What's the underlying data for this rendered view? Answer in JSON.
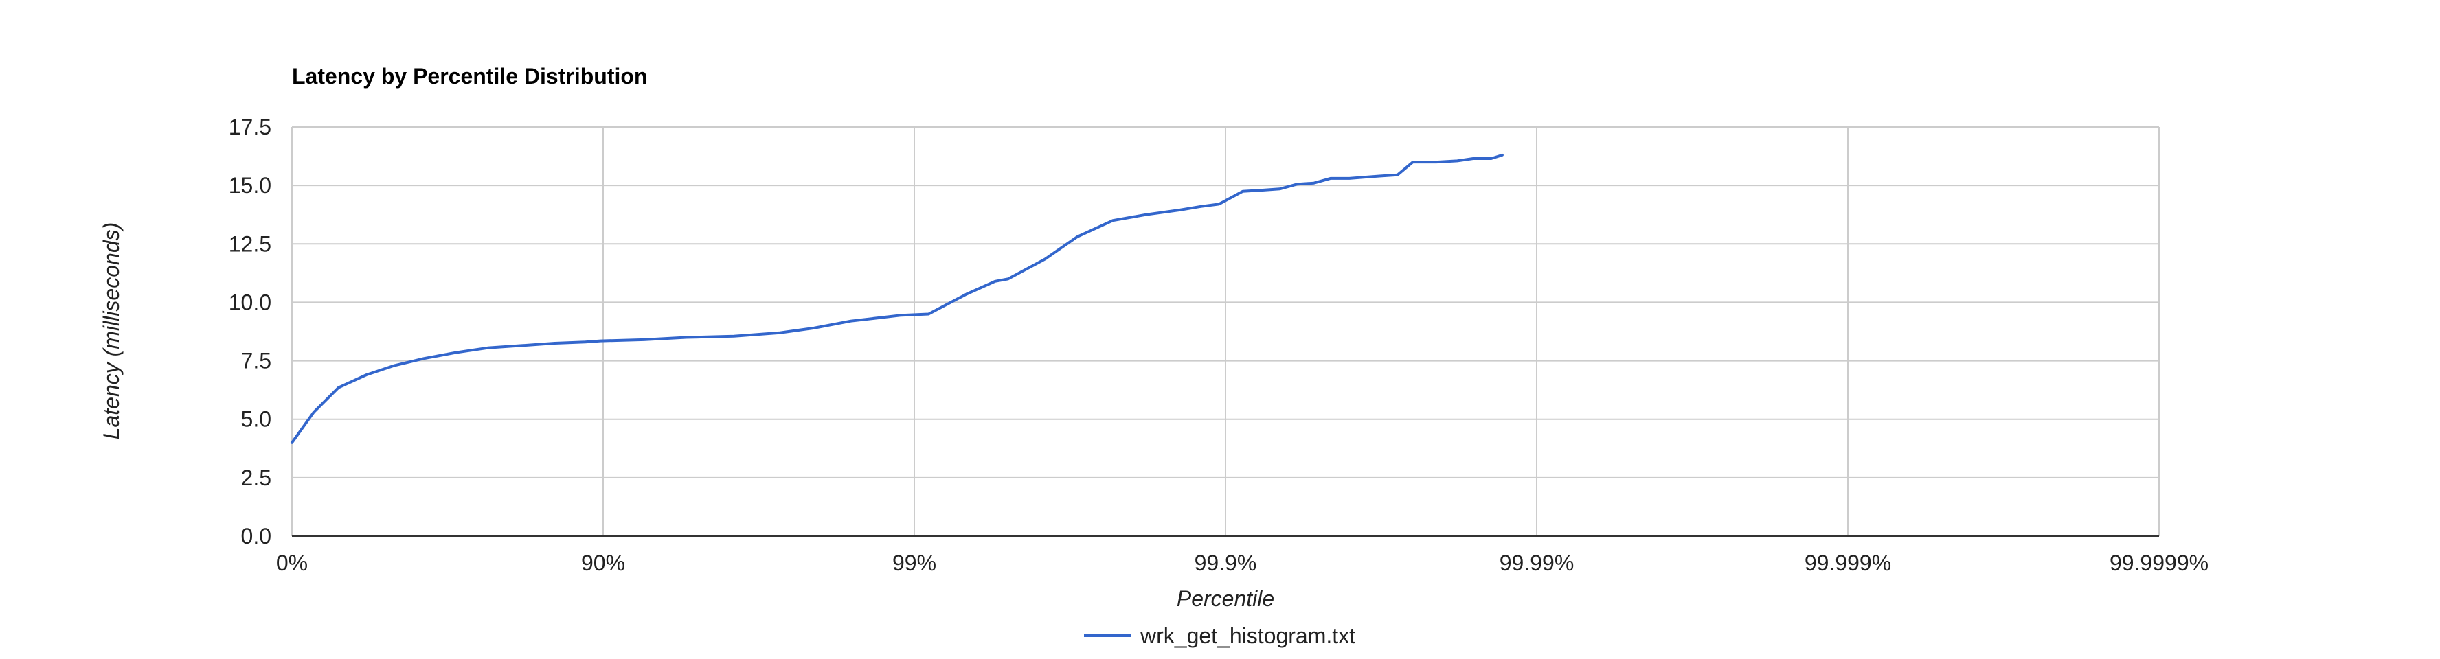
{
  "chart_data": {
    "type": "line",
    "title": "Latency by Percentile Distribution",
    "xlabel": "Percentile",
    "ylabel": "Latency (milliseconds)",
    "x_scale": "log-inverse-percentile",
    "x_ticks": [
      "0%",
      "90%",
      "99%",
      "99.9%",
      "99.99%",
      "99.999%",
      "99.9999%"
    ],
    "x_tick_values": [
      0,
      90,
      99,
      99.9,
      99.99,
      99.999,
      99.9999
    ],
    "xlim": [
      0,
      99.9999
    ],
    "y_ticks": [
      "0.0",
      "2.5",
      "5.0",
      "7.5",
      "10.0",
      "12.5",
      "15.0",
      "17.5"
    ],
    "ylim": [
      0,
      17.5
    ],
    "grid": true,
    "legend": "bottom",
    "colors": {
      "series": "#3366cc",
      "grid": "#cccccc",
      "axis": "#333333"
    },
    "series": [
      {
        "name": "wrk_get_histogram.txt",
        "x": [
          0,
          14.9,
          29.1,
          42.4,
          53.2,
          62.4,
          70.2,
          76.5,
          81.7,
          85.7,
          88.6,
          89.8,
          92.6,
          94.6,
          96.2,
          97.3,
          97.9,
          98.4,
          98.9,
          99.1,
          99.32,
          99.45,
          99.5,
          99.62,
          99.7,
          99.77,
          99.82,
          99.86,
          99.88,
          99.895,
          99.912,
          99.924,
          99.933,
          99.941,
          99.948,
          99.954,
          99.96,
          99.964,
          99.968,
          99.972,
          99.975,
          99.979,
          99.982,
          99.984,
          99.986,
          99.9871
        ],
        "y": [
          4.0,
          5.3,
          6.35,
          6.9,
          7.3,
          7.6,
          7.85,
          8.05,
          8.15,
          8.25,
          8.3,
          8.35,
          8.4,
          8.5,
          8.55,
          8.7,
          8.9,
          9.2,
          9.45,
          9.5,
          10.35,
          10.9,
          11.0,
          11.85,
          12.8,
          13.5,
          13.75,
          13.95,
          14.1,
          14.2,
          14.75,
          14.8,
          14.85,
          15.05,
          15.1,
          15.3,
          15.3,
          15.35,
          15.4,
          15.45,
          16.0,
          16.0,
          16.05,
          16.15,
          16.15,
          16.3
        ]
      }
    ]
  }
}
